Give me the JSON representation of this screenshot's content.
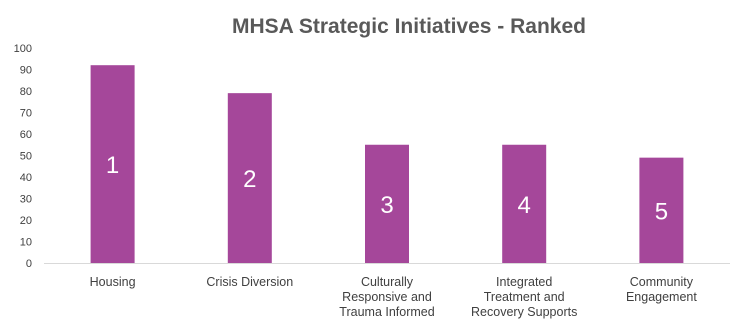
{
  "chart_data": {
    "type": "bar",
    "title": "MHSA Strategic Initiatives - Ranked",
    "xlabel": "",
    "ylabel": "",
    "ylim": [
      0,
      100
    ],
    "yticks": [
      0,
      10,
      20,
      30,
      40,
      50,
      60,
      70,
      80,
      90,
      100
    ],
    "grid": false,
    "legend": "none",
    "bar_color": "#A5479A",
    "categories": [
      [
        "Housing"
      ],
      [
        "Crisis Diversion"
      ],
      [
        "Culturally",
        "Responsive and",
        "Trauma Informed"
      ],
      [
        "Integrated",
        "Treatment and",
        "Recovery Supports"
      ],
      [
        "Community",
        "Engagement"
      ]
    ],
    "values": [
      92,
      79,
      55,
      55,
      49
    ],
    "data_labels": [
      "1",
      "2",
      "3",
      "4",
      "5"
    ]
  }
}
